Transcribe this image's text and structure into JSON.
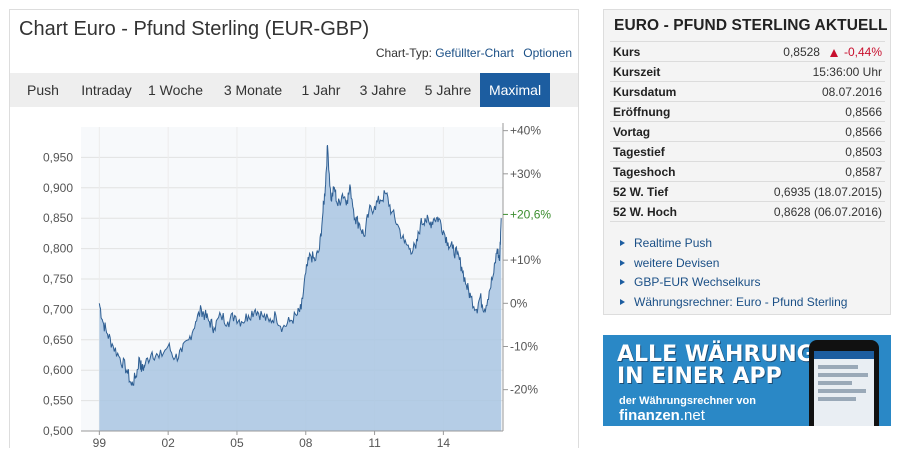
{
  "chart_panel": {
    "title": "Chart Euro - Pfund Sterling (EUR-GBP)",
    "chart_type_label": "Chart-Typ:",
    "chart_type_value": "Gefüllter-Chart",
    "options_label": "Optionen",
    "tabs": [
      {
        "label": "Push",
        "active": false
      },
      {
        "label": "Intraday",
        "active": false
      },
      {
        "label": "1 Woche",
        "active": false
      },
      {
        "label": "3 Monate",
        "active": false
      },
      {
        "label": "1 Jahr",
        "active": false
      },
      {
        "label": "3 Jahre",
        "active": false
      },
      {
        "label": "5 Jahre",
        "active": false
      },
      {
        "label": "Maximal",
        "active": true
      }
    ]
  },
  "chart_data": {
    "type": "area",
    "x_ticks": [
      "99",
      "02",
      "05",
      "08",
      "11",
      "14"
    ],
    "x_tick_years": [
      1999,
      2002,
      2005,
      2008,
      2011,
      2014
    ],
    "xlim": [
      1998.2,
      2016.6
    ],
    "ylim": [
      0.5,
      1.0
    ],
    "y_ticks": [
      "0,500",
      "0,550",
      "0,600",
      "0,650",
      "0,700",
      "0,750",
      "0,800",
      "0,850",
      "0,900",
      "0,950"
    ],
    "y_tick_values": [
      0.5,
      0.55,
      0.6,
      0.65,
      0.7,
      0.75,
      0.8,
      0.85,
      0.9,
      0.95
    ],
    "y2_ticks": [
      "-20%",
      "-10%",
      "0%",
      "+10%",
      "+30%",
      "+40%"
    ],
    "y2_tick_values": [
      -20,
      -10,
      0,
      10,
      30,
      40
    ],
    "current_marker_label": "+20,6%",
    "current_marker_value": 20.6,
    "x": [
      1999.0,
      1999.15,
      1999.35,
      1999.6,
      1999.9,
      2000.2,
      2000.4,
      2000.6,
      2000.75,
      2000.85,
      2001.0,
      2001.3,
      2001.6,
      2002.0,
      2002.3,
      2002.6,
      2002.9,
      2003.2,
      2003.45,
      2003.6,
      2003.8,
      2004.0,
      2004.3,
      2004.6,
      2004.9,
      2005.2,
      2005.5,
      2005.8,
      2006.1,
      2006.4,
      2006.7,
      2007.0,
      2007.3,
      2007.6,
      2007.8,
      2008.0,
      2008.2,
      2008.4,
      2008.6,
      2008.75,
      2008.85,
      2008.95,
      2009.1,
      2009.25,
      2009.4,
      2009.6,
      2009.8,
      2009.95,
      2010.15,
      2010.35,
      2010.55,
      2010.75,
      2011.0,
      2011.25,
      2011.5,
      2011.75,
      2012.0,
      2012.3,
      2012.55,
      2012.8,
      2013.0,
      2013.2,
      2013.4,
      2013.6,
      2013.8,
      2014.0,
      2014.2,
      2014.4,
      2014.6,
      2014.8,
      2015.0,
      2015.2,
      2015.45,
      2015.6,
      2015.8,
      2016.0,
      2016.2,
      2016.35,
      2016.45,
      2016.52
    ],
    "y": [
      0.71,
      0.68,
      0.66,
      0.64,
      0.62,
      0.6,
      0.575,
      0.59,
      0.62,
      0.6,
      0.61,
      0.63,
      0.62,
      0.64,
      0.62,
      0.63,
      0.65,
      0.68,
      0.7,
      0.69,
      0.68,
      0.67,
      0.69,
      0.68,
      0.69,
      0.68,
      0.69,
      0.7,
      0.69,
      0.68,
      0.69,
      0.67,
      0.68,
      0.69,
      0.7,
      0.76,
      0.79,
      0.78,
      0.8,
      0.86,
      0.9,
      0.97,
      0.88,
      0.9,
      0.87,
      0.89,
      0.88,
      0.9,
      0.85,
      0.84,
      0.82,
      0.86,
      0.87,
      0.88,
      0.89,
      0.86,
      0.84,
      0.81,
      0.8,
      0.8,
      0.84,
      0.85,
      0.84,
      0.85,
      0.85,
      0.83,
      0.81,
      0.8,
      0.79,
      0.77,
      0.74,
      0.72,
      0.7,
      0.72,
      0.7,
      0.73,
      0.76,
      0.8,
      0.78,
      0.85
    ]
  },
  "quote_panel": {
    "title": "EURO - PFUND STERLING AKTUELL",
    "rows": [
      {
        "label": "Kurs",
        "value": "0,8528",
        "change": "-0,44%"
      },
      {
        "label": "Kurszeit",
        "value": "15:36:00 Uhr"
      },
      {
        "label": "Kursdatum",
        "value": "08.07.2016"
      },
      {
        "label": "Eröffnung",
        "value": "0,8566"
      },
      {
        "label": "Vortag",
        "value": "0,8566"
      },
      {
        "label": "Tagestief",
        "value": "0,8503"
      },
      {
        "label": "Tageshoch",
        "value": "0,8587"
      },
      {
        "label": "52 W. Tief",
        "value": "0,6935 (18.07.2015)"
      },
      {
        "label": "52 W. Hoch",
        "value": "0,8628 (06.07.2016)"
      }
    ],
    "links": [
      "Realtime Push",
      "weitere Devisen",
      "GBP-EUR Wechselkurs",
      "Währungsrechner: Euro - Pfund Sterling"
    ]
  },
  "banner": {
    "headline_1": "ALLE WÄHRUNGEN",
    "headline_2": "IN EINER APP",
    "subline": "der Währungsrechner von",
    "brand": "finanzen",
    "brand_suffix": ".net"
  },
  "colors": {
    "accent": "#1c5da0",
    "area_fill": "#a9c5e2",
    "area_line": "#2f5f93",
    "negative": "#c8102e",
    "positive": "#3c8d2f",
    "banner_bg": "#2a88c6"
  }
}
